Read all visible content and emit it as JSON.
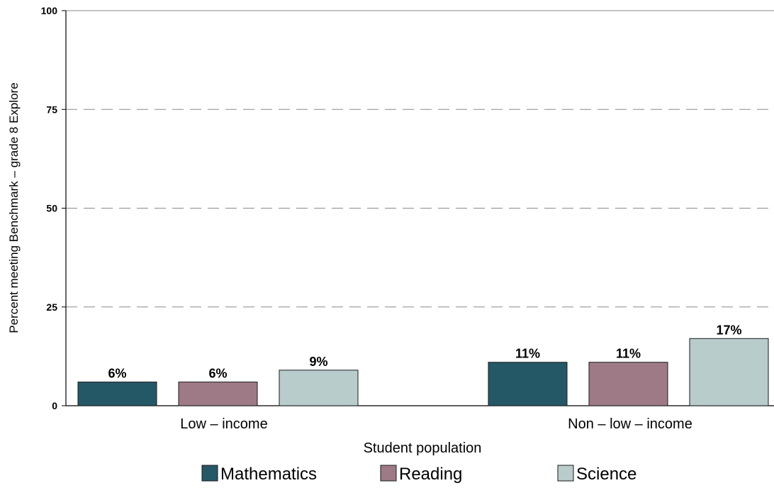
{
  "chart_data": {
    "type": "bar",
    "xlabel": "Student population",
    "ylabel": "Percent meeting Benchmark  –  grade 8 Explore",
    "ylim": [
      0,
      100
    ],
    "yticks": [
      0,
      25,
      50,
      75,
      100
    ],
    "grid": true,
    "legend_position": "bottom",
    "categories": [
      "Low – income",
      "Non – low – income"
    ],
    "series": [
      {
        "name": "Mathematics",
        "color": "#255867",
        "values": [
          6,
          11
        ],
        "labels": [
          "6%",
          "11%"
        ]
      },
      {
        "name": "Reading",
        "color": "#9e7a86",
        "values": [
          6,
          11
        ],
        "labels": [
          "6%",
          "11%"
        ]
      },
      {
        "name": "Science",
        "color": "#b9cccc",
        "values": [
          9,
          17
        ],
        "labels": [
          "9%",
          "17%"
        ]
      }
    ]
  }
}
